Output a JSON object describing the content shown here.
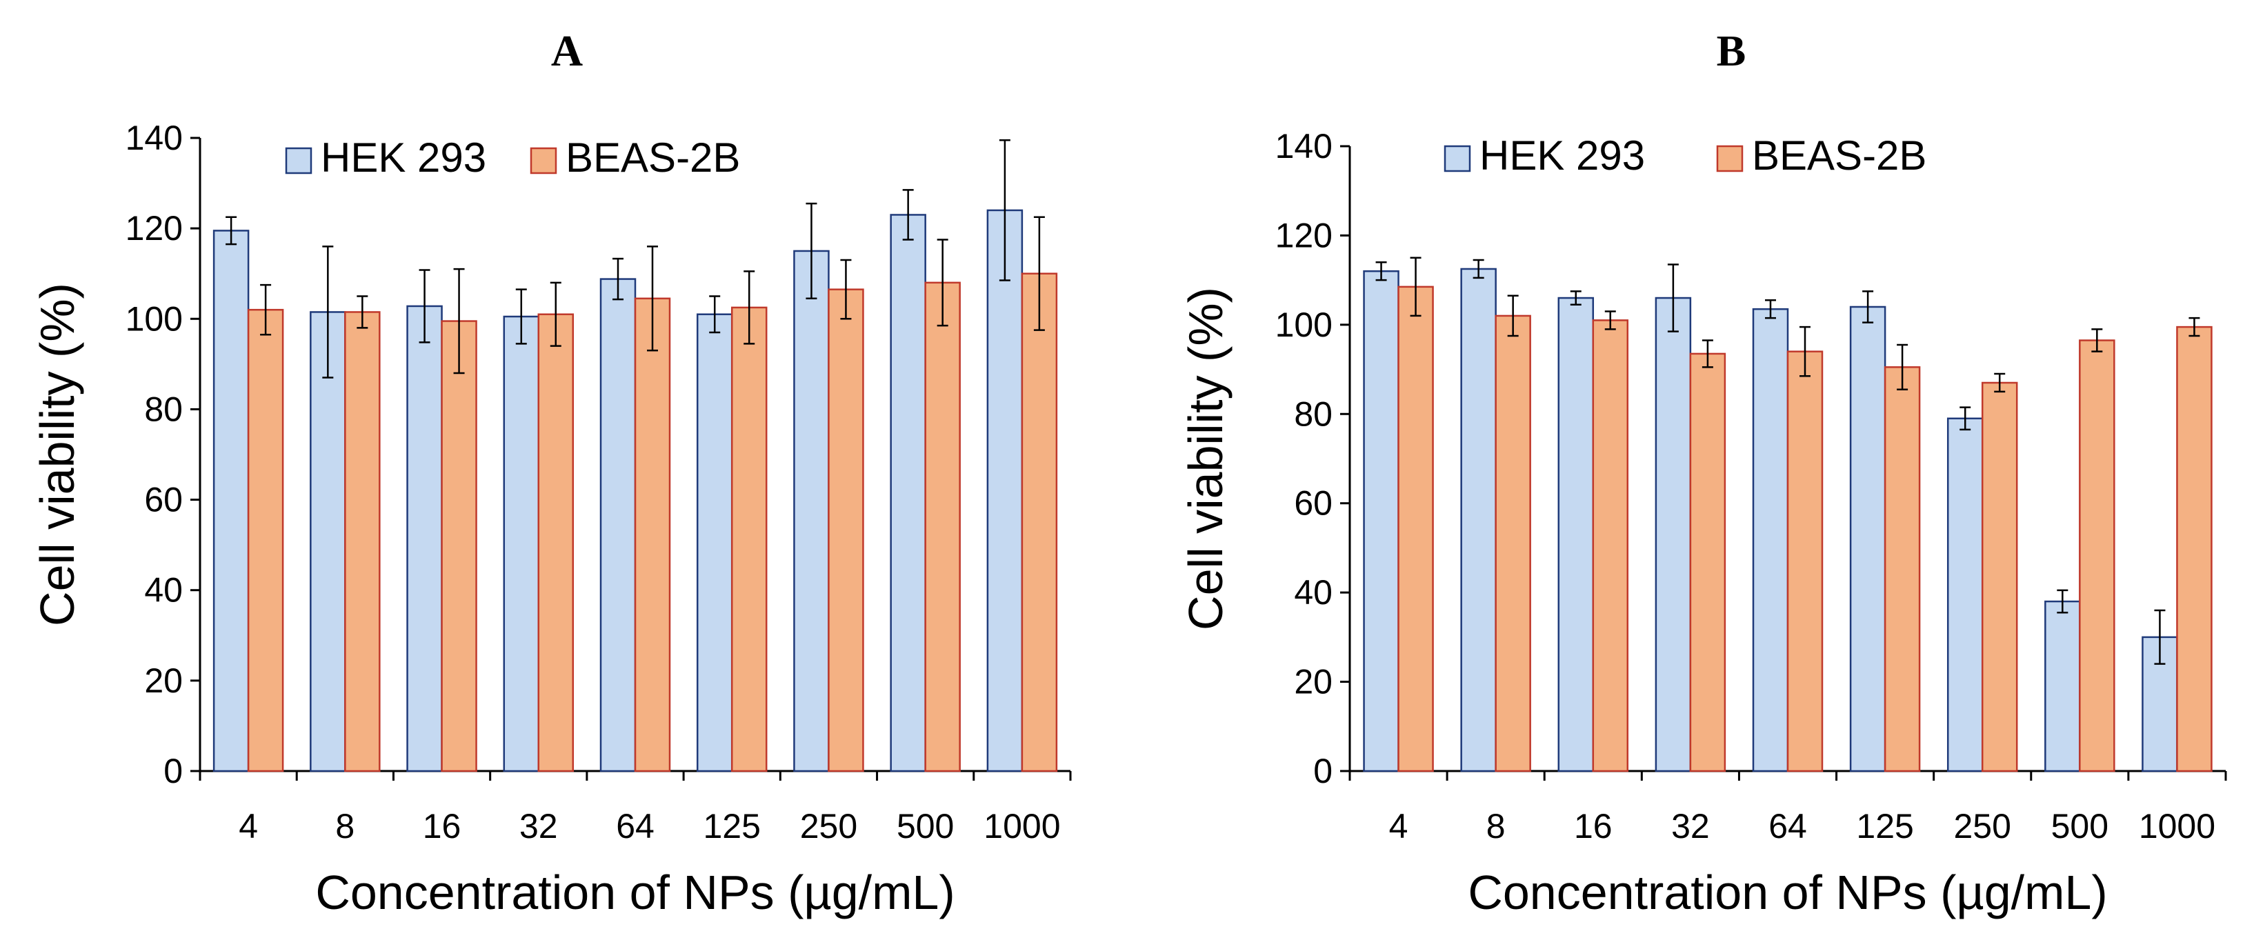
{
  "chart_data": [
    {
      "type": "bar",
      "title": "A",
      "xlabel": "Concentration of NPs (µg/mL)",
      "ylabel": "Cell viability (%)",
      "categories": [
        "4",
        "8",
        "16",
        "32",
        "64",
        "125",
        "250",
        "500",
        "1000"
      ],
      "ylim": [
        0,
        140
      ],
      "yticks": [
        0,
        20,
        40,
        60,
        80,
        100,
        120,
        140
      ],
      "grid": false,
      "legend_position": "top-left",
      "series": [
        {
          "name": "HEK 293",
          "color": "#c5d9f1",
          "edge": "#1f3a7a",
          "values": [
            119.5,
            101.5,
            102.8,
            100.5,
            108.8,
            101.0,
            115.0,
            123.0,
            124.0
          ],
          "errors": [
            3.0,
            14.5,
            8.0,
            6.0,
            4.5,
            4.0,
            10.5,
            5.5,
            15.5
          ]
        },
        {
          "name": "BEAS-2B",
          "color": "#f4b183",
          "edge": "#c0392b",
          "values": [
            102.0,
            101.5,
            99.5,
            101.0,
            104.5,
            102.5,
            106.5,
            108.0,
            110.0
          ],
          "errors": [
            5.5,
            3.5,
            11.5,
            7.0,
            11.5,
            8.0,
            6.5,
            9.5,
            12.5
          ]
        }
      ]
    },
    {
      "type": "bar",
      "title": "B",
      "xlabel": "Concentration of NPs (µg/mL)",
      "ylabel": "Cell viability (%)",
      "categories": [
        "4",
        "8",
        "16",
        "32",
        "64",
        "125",
        "250",
        "500",
        "1000"
      ],
      "ylim": [
        0,
        140
      ],
      "yticks": [
        0,
        20,
        40,
        60,
        80,
        100,
        120,
        140
      ],
      "grid": false,
      "legend_position": "top-left",
      "series": [
        {
          "name": "HEK 293",
          "color": "#c5d9f1",
          "edge": "#1f3a7a",
          "values": [
            112.0,
            112.5,
            106.0,
            106.0,
            103.5,
            104.0,
            79.0,
            38.0,
            30.0
          ],
          "errors": [
            2.0,
            2.0,
            1.5,
            7.5,
            2.0,
            3.5,
            2.5,
            2.5,
            6.0
          ]
        },
        {
          "name": "BEAS-2B",
          "color": "#f4b183",
          "edge": "#c0392b",
          "values": [
            108.5,
            102.0,
            101.0,
            93.5,
            94.0,
            90.5,
            87.0,
            96.5,
            99.5
          ],
          "errors": [
            6.5,
            4.5,
            2.0,
            3.0,
            5.5,
            5.0,
            2.0,
            2.5,
            2.0
          ]
        }
      ]
    }
  ]
}
